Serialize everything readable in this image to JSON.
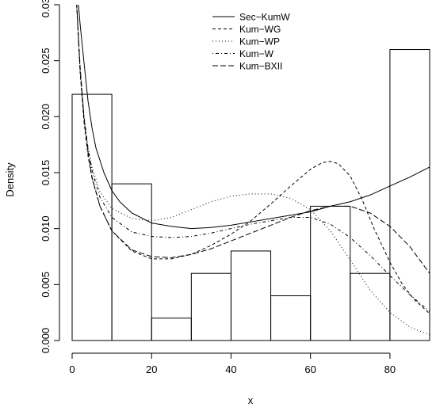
{
  "chart_data": {
    "type": "histogram-with-density-curves",
    "xlabel": "x",
    "ylabel": "Density",
    "xlim": [
      0,
      90
    ],
    "ylim": [
      0,
      0.03
    ],
    "x_ticks": [
      0,
      20,
      40,
      60,
      80
    ],
    "x_tick_labels": [
      "0",
      "20",
      "40",
      "60",
      "80"
    ],
    "y_ticks": [
      0.0,
      0.005,
      0.01,
      0.015,
      0.02,
      0.025,
      0.03
    ],
    "y_tick_labels": [
      "0.000",
      "0.005",
      "0.010",
      "0.015",
      "0.020",
      "0.025",
      "0.030"
    ],
    "grid": false,
    "legend_position": "top-right",
    "histogram": {
      "bins": [
        {
          "x0": 0,
          "x1": 10,
          "density": 0.022
        },
        {
          "x0": 10,
          "x1": 20,
          "density": 0.014
        },
        {
          "x0": 20,
          "x1": 30,
          "density": 0.002
        },
        {
          "x0": 30,
          "x1": 40,
          "density": 0.006
        },
        {
          "x0": 40,
          "x1": 50,
          "density": 0.008
        },
        {
          "x0": 50,
          "x1": 60,
          "density": 0.004
        },
        {
          "x0": 60,
          "x1": 70,
          "density": 0.012
        },
        {
          "x0": 70,
          "x1": 80,
          "density": 0.006
        },
        {
          "x0": 80,
          "x1": 90,
          "density": 0.026
        }
      ]
    },
    "series": [
      {
        "name": "Sec−KumW",
        "line_style": "solid",
        "points": [
          [
            1,
            0.0325
          ],
          [
            2,
            0.0283
          ],
          [
            3,
            0.0248
          ],
          [
            4,
            0.0214
          ],
          [
            5,
            0.019
          ],
          [
            6,
            0.0172
          ],
          [
            8,
            0.015
          ],
          [
            10,
            0.0134
          ],
          [
            12,
            0.0124
          ],
          [
            15,
            0.0114
          ],
          [
            20,
            0.0105
          ],
          [
            25,
            0.0102
          ],
          [
            30,
            0.01
          ],
          [
            35,
            0.0101
          ],
          [
            40,
            0.0103
          ],
          [
            45,
            0.0106
          ],
          [
            50,
            0.0109
          ],
          [
            55,
            0.0112
          ],
          [
            60,
            0.0115
          ],
          [
            65,
            0.012
          ],
          [
            70,
            0.0124
          ],
          [
            75,
            0.013
          ],
          [
            80,
            0.0138
          ],
          [
            85,
            0.0146
          ],
          [
            90,
            0.0155
          ]
        ]
      },
      {
        "name": "Kum−WG",
        "line_style": "dashed",
        "points": [
          [
            1,
            0.031
          ],
          [
            2,
            0.024
          ],
          [
            3,
            0.0195
          ],
          [
            4,
            0.0165
          ],
          [
            5,
            0.0145
          ],
          [
            7,
            0.012
          ],
          [
            10,
            0.0098
          ],
          [
            15,
            0.008
          ],
          [
            20,
            0.0073
          ],
          [
            25,
            0.0073
          ],
          [
            30,
            0.0077
          ],
          [
            35,
            0.0085
          ],
          [
            40,
            0.0095
          ],
          [
            45,
            0.0107
          ],
          [
            50,
            0.0122
          ],
          [
            55,
            0.0138
          ],
          [
            60,
            0.0153
          ],
          [
            63,
            0.0159
          ],
          [
            65,
            0.016
          ],
          [
            67,
            0.0158
          ],
          [
            70,
            0.0147
          ],
          [
            73,
            0.0126
          ],
          [
            76,
            0.01
          ],
          [
            80,
            0.007
          ],
          [
            83,
            0.0051
          ],
          [
            86,
            0.0037
          ],
          [
            90,
            0.0024
          ]
        ]
      },
      {
        "name": "Kum−WP",
        "line_style": "dotted",
        "points": [
          [
            1,
            0.031
          ],
          [
            2,
            0.024
          ],
          [
            3,
            0.0198
          ],
          [
            4,
            0.0172
          ],
          [
            5,
            0.0155
          ],
          [
            7,
            0.0133
          ],
          [
            10,
            0.0118
          ],
          [
            15,
            0.0109
          ],
          [
            20,
            0.0107
          ],
          [
            25,
            0.011
          ],
          [
            30,
            0.0117
          ],
          [
            35,
            0.0124
          ],
          [
            40,
            0.0129
          ],
          [
            45,
            0.0131
          ],
          [
            50,
            0.0131
          ],
          [
            55,
            0.0127
          ],
          [
            60,
            0.0117
          ],
          [
            65,
            0.0098
          ],
          [
            70,
            0.0072
          ],
          [
            75,
            0.0045
          ],
          [
            80,
            0.0025
          ],
          [
            85,
            0.0012
          ],
          [
            90,
            0.0005
          ]
        ]
      },
      {
        "name": "Kum−W",
        "line_style": "dotdash",
        "points": [
          [
            1,
            0.031
          ],
          [
            2,
            0.0243
          ],
          [
            3,
            0.02
          ],
          [
            4,
            0.0172
          ],
          [
            5,
            0.0152
          ],
          [
            7,
            0.0128
          ],
          [
            10,
            0.011
          ],
          [
            15,
            0.0097
          ],
          [
            20,
            0.0093
          ],
          [
            25,
            0.0092
          ],
          [
            30,
            0.0093
          ],
          [
            35,
            0.0096
          ],
          [
            40,
            0.01
          ],
          [
            45,
            0.0104
          ],
          [
            50,
            0.0107
          ],
          [
            55,
            0.011
          ],
          [
            60,
            0.011
          ],
          [
            65,
            0.0104
          ],
          [
            70,
            0.0092
          ],
          [
            75,
            0.0076
          ],
          [
            80,
            0.0058
          ],
          [
            85,
            0.0041
          ],
          [
            90,
            0.0026
          ]
        ]
      },
      {
        "name": "Kum−BXII",
        "line_style": "longdash",
        "points": [
          [
            1,
            0.031
          ],
          [
            2,
            0.0245
          ],
          [
            3,
            0.0198
          ],
          [
            4,
            0.0168
          ],
          [
            5,
            0.0146
          ],
          [
            7,
            0.012
          ],
          [
            10,
            0.0098
          ],
          [
            15,
            0.0081
          ],
          [
            20,
            0.0075
          ],
          [
            25,
            0.0074
          ],
          [
            30,
            0.0077
          ],
          [
            35,
            0.0082
          ],
          [
            40,
            0.0089
          ],
          [
            45,
            0.0096
          ],
          [
            50,
            0.0103
          ],
          [
            55,
            0.011
          ],
          [
            60,
            0.0116
          ],
          [
            65,
            0.012
          ],
          [
            70,
            0.012
          ],
          [
            75,
            0.0114
          ],
          [
            80,
            0.0102
          ],
          [
            85,
            0.0084
          ],
          [
            90,
            0.006
          ]
        ]
      }
    ]
  }
}
